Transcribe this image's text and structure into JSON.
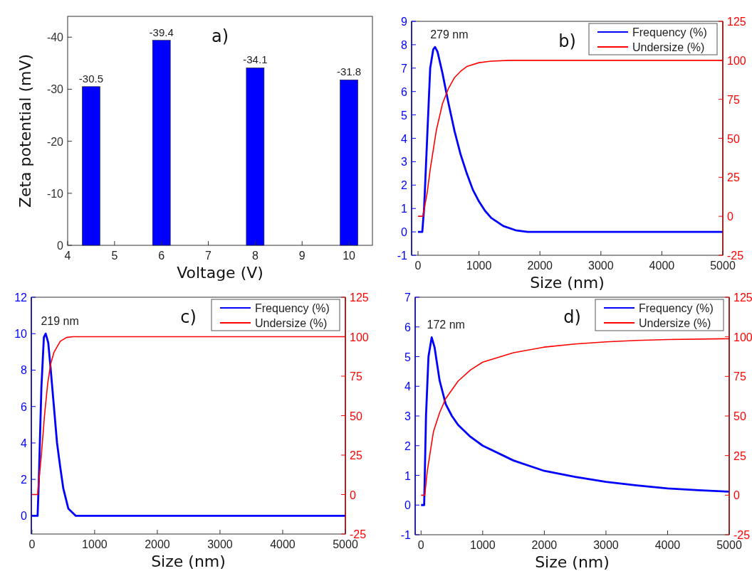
{
  "chart_data": [
    {
      "type": "bar",
      "xlabel": "Voltage (V)",
      "ylabel": "Zeta potential (mV)",
      "x": [
        4.5,
        6,
        8,
        10
      ],
      "values": [
        -30.5,
        -39.4,
        -34.1,
        -31.8
      ],
      "color": "#0000ff",
      "xlim": [
        4,
        10.5
      ],
      "xticks": [
        4,
        5,
        6,
        7,
        8,
        9,
        10
      ],
      "ylim": [
        0,
        -44
      ],
      "yticks": [
        0,
        -10,
        -20,
        -30,
        -40
      ],
      "data_labels": true,
      "annotations": [
        "a)"
      ]
    },
    {
      "type": "line",
      "xlabel": "Size (nm)",
      "xlim": [
        -105,
        5000
      ],
      "xticks": [
        0,
        1000,
        2000,
        3000,
        4000,
        5000
      ],
      "ylim": [
        -1,
        9
      ],
      "yticks": [
        -1,
        0,
        1,
        2,
        3,
        4,
        5,
        6,
        7,
        8,
        9
      ],
      "y2lim": [
        -25,
        125
      ],
      "y2ticks": [
        -25,
        0,
        25,
        50,
        75,
        100,
        125
      ],
      "legend": "top right",
      "annotations": [
        "b)",
        {
          "text": "279 nm",
          "x": 279,
          "y": 7.9
        }
      ],
      "series": [
        {
          "name": "Frequency (%)",
          "color": "#0000ff",
          "x": [
            0,
            70,
            100,
            150,
            200,
            250,
            279,
            320,
            400,
            500,
            600,
            700,
            800,
            900,
            1000,
            1100,
            1200,
            1400,
            1600,
            1800,
            5000
          ],
          "values": [
            0,
            0,
            1,
            4,
            7,
            7.8,
            7.9,
            7.7,
            6.8,
            5.5,
            4.3,
            3.3,
            2.5,
            1.8,
            1.3,
            0.9,
            0.6,
            0.25,
            0.07,
            0,
            0
          ]
        },
        {
          "name": "Undersize (%)",
          "color": "#ff0000",
          "axis": "y2",
          "x": [
            0,
            80,
            150,
            200,
            300,
            400,
            500,
            600,
            700,
            800,
            1000,
            1200,
            1500,
            5000
          ],
          "values": [
            0,
            0,
            15,
            30,
            55,
            72,
            82,
            89,
            93,
            96,
            98.5,
            99.5,
            100,
            100
          ]
        }
      ]
    },
    {
      "type": "line",
      "xlabel": "Size (nm)",
      "xlim": [
        -10,
        5000
      ],
      "xticks": [
        0,
        1000,
        2000,
        3000,
        4000,
        5000
      ],
      "ylim": [
        -1,
        12
      ],
      "yticks": [
        0,
        2,
        4,
        6,
        8,
        10,
        12
      ],
      "y2lim": [
        -25,
        125
      ],
      "y2ticks": [
        -25,
        0,
        25,
        50,
        75,
        100,
        125
      ],
      "legend": "top right",
      "annotations": [
        "c)",
        {
          "text": "219 nm",
          "x": 219,
          "y": 10
        }
      ],
      "series": [
        {
          "name": "Frequency (%)",
          "color": "#0000ff",
          "x": [
            0,
            90,
            110,
            150,
            190,
            219,
            260,
            300,
            350,
            400,
            450,
            500,
            580,
            700,
            5000
          ],
          "values": [
            0,
            0,
            2,
            7,
            9.8,
            10,
            9.5,
            8,
            6,
            4,
            2.7,
            1.5,
            0.4,
            0,
            0
          ]
        },
        {
          "name": "Undersize (%)",
          "color": "#ff0000",
          "axis": "y2",
          "x": [
            0,
            90,
            150,
            200,
            250,
            300,
            350,
            450,
            550,
            650,
            5000
          ],
          "values": [
            0,
            0,
            25,
            50,
            70,
            83,
            90,
            97,
            99.5,
            100,
            100
          ]
        }
      ]
    },
    {
      "type": "line",
      "xlabel": "Size (nm)",
      "xlim": [
        -96,
        5000
      ],
      "xticks": [
        0,
        1000,
        2000,
        3000,
        4000,
        5000
      ],
      "ylim": [
        -1,
        7
      ],
      "yticks": [
        -1,
        0,
        1,
        2,
        3,
        4,
        5,
        6,
        7
      ],
      "y2lim": [
        -25,
        125
      ],
      "y2ticks": [
        -25,
        0,
        25,
        50,
        75,
        100,
        125
      ],
      "legend": "top right",
      "annotations": [
        "d)",
        {
          "text": "172 nm",
          "x": 172,
          "y": 5.65
        }
      ],
      "series": [
        {
          "name": "Frequency (%)",
          "color": "#0000ff",
          "x": [
            0,
            50,
            80,
            120,
            172,
            220,
            300,
            400,
            500,
            600,
            800,
            1000,
            1500,
            2000,
            2500,
            3000,
            3500,
            4000,
            4500,
            5000
          ],
          "values": [
            0,
            0,
            3,
            5,
            5.65,
            5.3,
            4.2,
            3.4,
            3,
            2.7,
            2.3,
            2,
            1.5,
            1.15,
            0.95,
            0.78,
            0.66,
            0.56,
            0.5,
            0.45
          ]
        },
        {
          "name": "Undersize (%)",
          "color": "#ff0000",
          "axis": "y2",
          "x": [
            0,
            60,
            100,
            200,
            300,
            400,
            600,
            800,
            1000,
            1500,
            2000,
            2500,
            3000,
            3500,
            4000,
            5000
          ],
          "values": [
            0,
            0,
            15,
            40,
            52,
            61,
            72,
            79,
            84,
            90,
            93.5,
            95.5,
            96.8,
            97.7,
            98.3,
            98.8
          ]
        }
      ]
    }
  ]
}
